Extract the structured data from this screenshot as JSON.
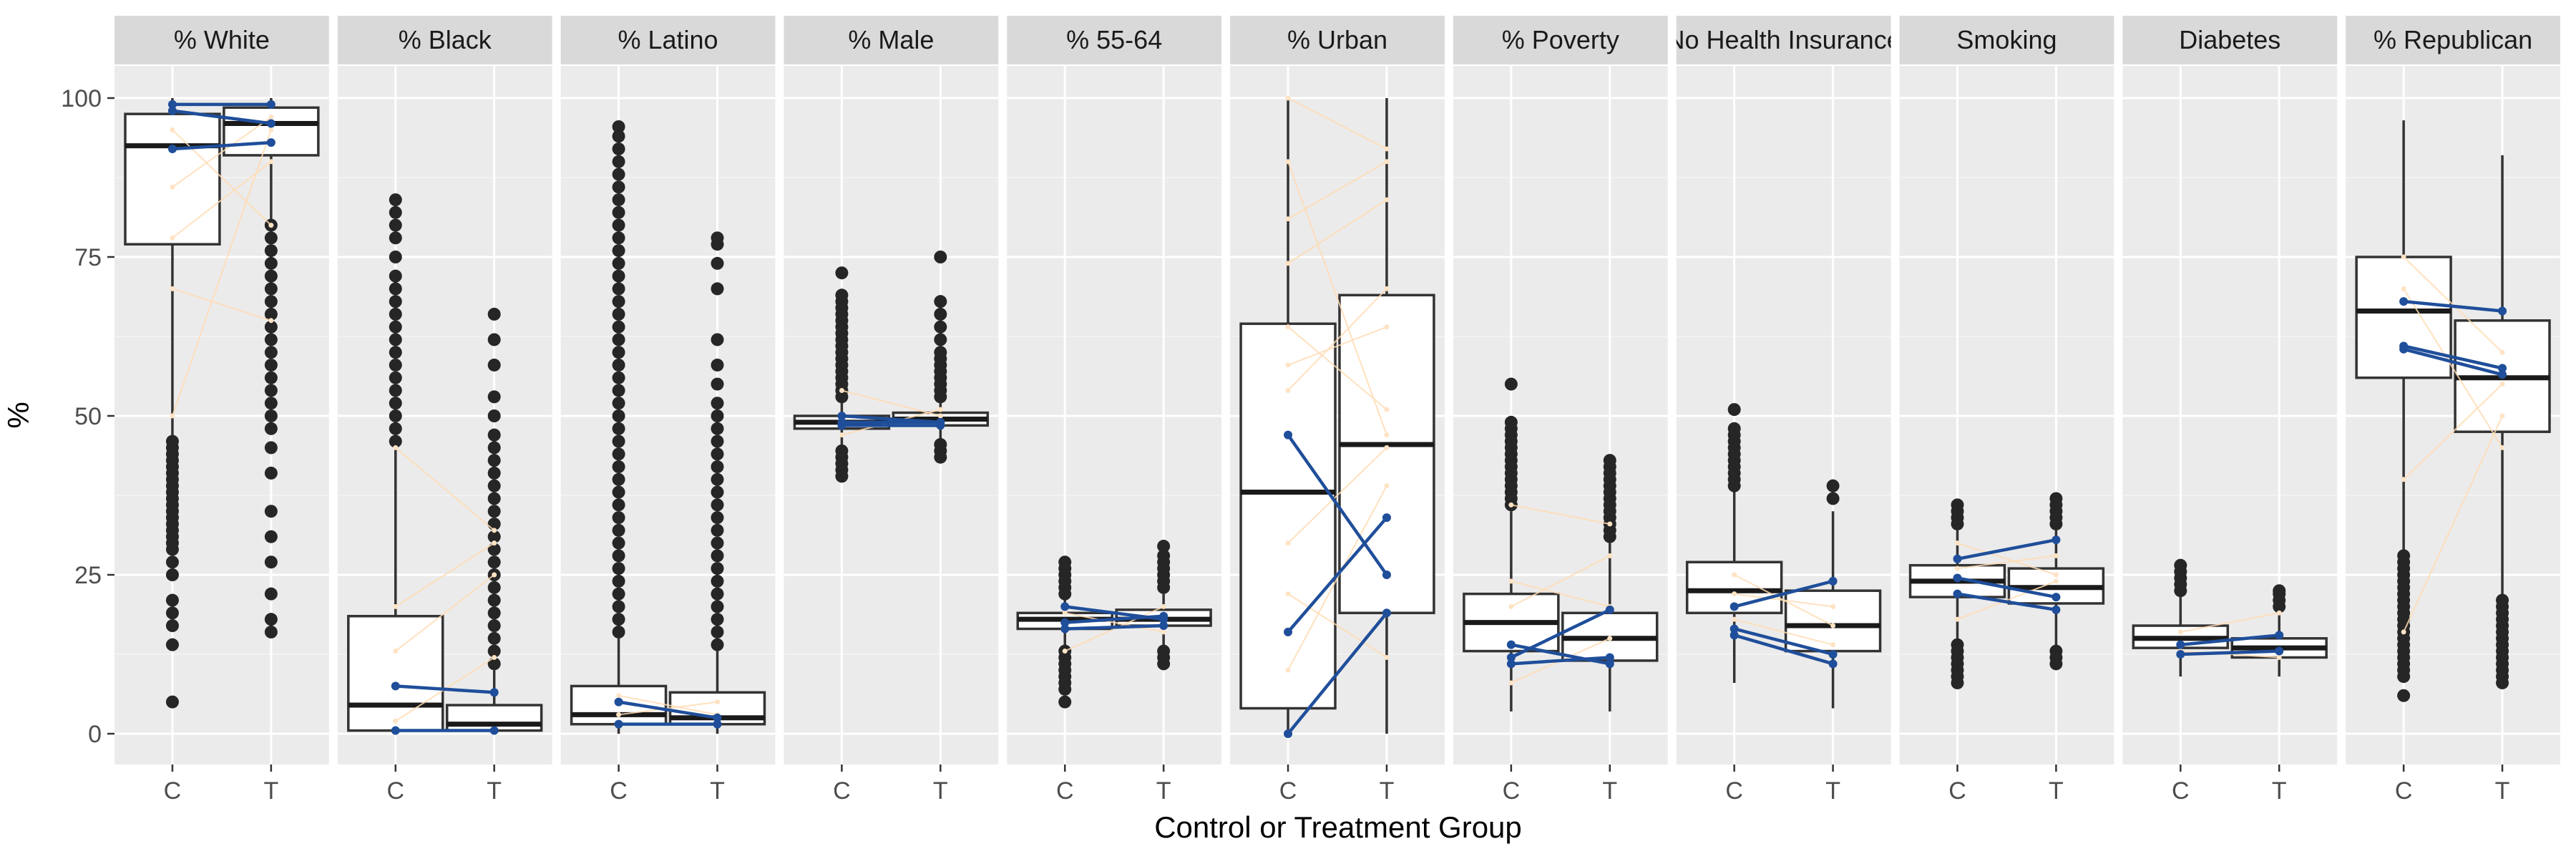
{
  "chart_data": {
    "type": "boxplot",
    "ylabel": "%",
    "xlabel": "Control or Treatment Group",
    "ylim": [
      0,
      100
    ],
    "y_ticks": [
      0,
      25,
      50,
      75,
      100
    ],
    "x_categories": [
      "C",
      "T"
    ],
    "grid": true,
    "colors": {
      "paired_highlight": "#1f4e9a",
      "paired_light": "#ffdcb4"
    },
    "facets": [
      {
        "label": "% White",
        "boxes": [
          {
            "group": "C",
            "lower": 77,
            "q1": 77,
            "median": 92.5,
            "q3": 97.5,
            "upper": 100,
            "whisker_low": 47,
            "whisker_high": 100,
            "outliers": [
              5,
              14,
              17,
              19,
              21,
              25,
              27,
              29,
              30,
              31,
              32,
              33,
              34,
              35,
              36,
              37,
              38,
              39,
              40,
              41,
              42,
              43,
              44,
              45,
              46
            ]
          },
          {
            "group": "T",
            "q1": 91,
            "median": 96,
            "q3": 98.5,
            "whisker_low": 80,
            "whisker_high": 100,
            "outliers": [
              16,
              18,
              22,
              27,
              31,
              35,
              41,
              45,
              48,
              50,
              52,
              54,
              56,
              58,
              60,
              62,
              64,
              66,
              68,
              70,
              72,
              74,
              76,
              78,
              80
            ]
          }
        ],
        "highlight_pairs": [
          [
            99,
            99
          ],
          [
            98,
            96
          ],
          [
            92,
            93
          ]
        ],
        "light_pairs": [
          [
            50,
            95
          ],
          [
            70,
            65
          ],
          [
            86,
            97
          ],
          [
            78,
            90
          ],
          [
            95,
            80
          ]
        ]
      },
      {
        "label": "% Black",
        "boxes": [
          {
            "group": "C",
            "q1": 0.5,
            "median": 4.5,
            "q3": 18.5,
            "whisker_low": 0,
            "whisker_high": 45,
            "outliers": [
              46,
              48,
              50,
              52,
              54,
              56,
              58,
              60,
              62,
              64,
              66,
              68,
              70,
              72,
              75,
              78,
              80,
              82,
              84
            ]
          },
          {
            "group": "T",
            "q1": 0.5,
            "median": 1.5,
            "q3": 4.5,
            "whisker_low": 0,
            "whisker_high": 10,
            "outliers": [
              11,
              13,
              15,
              17,
              19,
              21,
              23,
              25,
              27,
              29,
              31,
              33,
              35,
              37,
              39,
              41,
              43,
              45,
              47,
              50,
              53,
              58,
              62,
              66
            ]
          }
        ],
        "highlight_pairs": [
          [
            7.5,
            6.5
          ],
          [
            0.5,
            0.5
          ]
        ],
        "light_pairs": [
          [
            13,
            25
          ],
          [
            45,
            32
          ],
          [
            20,
            30
          ],
          [
            2,
            12
          ]
        ]
      },
      {
        "label": "% Latino",
        "boxes": [
          {
            "group": "C",
            "q1": 1.5,
            "median": 3,
            "q3": 7.5,
            "whisker_low": 0,
            "whisker_high": 15,
            "outliers": [
              16,
              18,
              20,
              22,
              24,
              26,
              28,
              30,
              32,
              34,
              36,
              38,
              40,
              42,
              44,
              46,
              48,
              50,
              52,
              54,
              56,
              58,
              60,
              62,
              64,
              66,
              68,
              70,
              72,
              74,
              76,
              78,
              80,
              82,
              84,
              86,
              88,
              90,
              92,
              94,
              95.5
            ]
          },
          {
            "group": "T",
            "q1": 1.5,
            "median": 2.5,
            "q3": 6.5,
            "whisker_low": 0,
            "whisker_high": 13,
            "outliers": [
              14,
              16,
              18,
              20,
              22,
              24,
              26,
              28,
              30,
              32,
              34,
              36,
              38,
              40,
              42,
              44,
              46,
              48,
              50,
              52,
              55,
              58,
              62,
              70,
              74,
              77,
              78
            ]
          }
        ],
        "highlight_pairs": [
          [
            5,
            2.5
          ],
          [
            1.5,
            1.5
          ]
        ],
        "light_pairs": [
          [
            3,
            5
          ],
          [
            6,
            3
          ]
        ]
      },
      {
        "label": "% Male",
        "boxes": [
          {
            "group": "C",
            "q1": 48,
            "median": 49,
            "q3": 50,
            "whisker_low": 45.5,
            "whisker_high": 52.5,
            "outliers": [
              40.5,
              41.5,
              42.5,
              43.5,
              44.5,
              53,
              54,
              55,
              56,
              57,
              58,
              59,
              60,
              61,
              62,
              63,
              64,
              65,
              66,
              67,
              68,
              69,
              72.5
            ]
          },
          {
            "group": "T",
            "q1": 48.5,
            "median": 49.5,
            "q3": 50.5,
            "whisker_low": 46,
            "whisker_high": 52.5,
            "outliers": [
              43.5,
              44.5,
              45.5,
              53,
              54,
              55,
              56,
              57,
              58,
              59,
              60,
              62,
              64,
              66,
              68,
              75
            ]
          }
        ],
        "highlight_pairs": [
          [
            49,
            49
          ],
          [
            48.5,
            48.5
          ],
          [
            50,
            49
          ]
        ],
        "light_pairs": [
          [
            54,
            50
          ],
          [
            47,
            51
          ]
        ]
      },
      {
        "label": "% 55-64",
        "boxes": [
          {
            "group": "C",
            "q1": 16.5,
            "median": 18,
            "q3": 19,
            "whisker_low": 13.5,
            "whisker_high": 21,
            "outliers": [
              5,
              7,
              8,
              9,
              10,
              11,
              12,
              13,
              22,
              23,
              24,
              25,
              26,
              27
            ]
          },
          {
            "group": "T",
            "q1": 17,
            "median": 18,
            "q3": 19.5,
            "whisker_low": 14,
            "whisker_high": 22,
            "outliers": [
              11,
              12,
              13,
              23,
              24,
              25,
              26,
              27,
              28,
              29.5
            ]
          }
        ],
        "highlight_pairs": [
          [
            20,
            18
          ],
          [
            17.5,
            18.5
          ],
          [
            16.5,
            17
          ]
        ],
        "light_pairs": [
          [
            13,
            20
          ],
          [
            19,
            16
          ]
        ]
      },
      {
        "label": "% Urban",
        "boxes": [
          {
            "group": "C",
            "q1": 4,
            "median": 38,
            "q3": 64.5,
            "whisker_low": 0,
            "whisker_high": 100,
            "outliers": []
          },
          {
            "group": "T",
            "q1": 19,
            "median": 45.5,
            "q3": 69,
            "whisker_low": 0,
            "whisker_high": 100,
            "outliers": []
          }
        ],
        "highlight_pairs": [
          [
            47,
            25
          ],
          [
            16,
            34
          ],
          [
            0,
            19
          ]
        ],
        "light_pairs": [
          [
            100,
            92
          ],
          [
            58,
            64
          ],
          [
            81,
            90
          ],
          [
            64,
            51
          ],
          [
            30,
            45
          ],
          [
            10,
            39
          ],
          [
            54,
            70
          ],
          [
            74,
            84
          ],
          [
            90,
            47
          ],
          [
            22,
            12
          ]
        ]
      },
      {
        "label": "% Poverty",
        "boxes": [
          {
            "group": "C",
            "q1": 13,
            "median": 17.5,
            "q3": 22,
            "whisker_low": 3.5,
            "whisker_high": 35,
            "outliers": [
              36,
              37,
              38,
              39,
              40,
              41,
              42,
              43,
              44,
              45,
              46,
              47,
              48,
              49,
              55
            ]
          },
          {
            "group": "T",
            "q1": 11.5,
            "median": 15,
            "q3": 19,
            "whisker_low": 3.5,
            "whisker_high": 30,
            "outliers": [
              31,
              32,
              33,
              34,
              35,
              36,
              37,
              38,
              39,
              40,
              41,
              42,
              43
            ]
          }
        ],
        "highlight_pairs": [
          [
            14,
            11
          ],
          [
            12,
            19.5
          ],
          [
            11,
            12
          ]
        ],
        "light_pairs": [
          [
            36,
            33
          ],
          [
            20,
            28
          ],
          [
            24,
            20
          ],
          [
            8,
            15
          ]
        ]
      },
      {
        "label": "No Health Insurance",
        "boxes": [
          {
            "group": "C",
            "q1": 19,
            "median": 22.5,
            "q3": 27,
            "whisker_low": 8,
            "whisker_high": 38,
            "outliers": [
              39,
              40,
              41,
              42,
              43,
              44,
              45,
              46,
              47,
              48,
              51
            ]
          },
          {
            "group": "T",
            "q1": 13,
            "median": 17,
            "q3": 22.5,
            "whisker_low": 4,
            "whisker_high": 35,
            "outliers": [
              37,
              39
            ]
          }
        ],
        "highlight_pairs": [
          [
            20,
            24
          ],
          [
            16.5,
            12.5
          ],
          [
            15.5,
            11
          ]
        ],
        "light_pairs": [
          [
            25,
            17
          ],
          [
            22,
            20
          ],
          [
            18,
            14
          ]
        ]
      },
      {
        "label": "Smoking",
        "boxes": [
          {
            "group": "C",
            "q1": 21.5,
            "median": 24,
            "q3": 26.5,
            "whisker_low": 15,
            "whisker_high": 32,
            "outliers": [
              8,
              9,
              10,
              11,
              12,
              13,
              14,
              33,
              34,
              35,
              36
            ]
          },
          {
            "group": "T",
            "q1": 20.5,
            "median": 23,
            "q3": 26,
            "whisker_low": 13.5,
            "whisker_high": 32,
            "outliers": [
              11,
              12,
              13,
              33,
              34,
              35,
              36,
              37
            ]
          }
        ],
        "highlight_pairs": [
          [
            27.5,
            30.5
          ],
          [
            24.5,
            21.5
          ],
          [
            22,
            19.5
          ]
        ],
        "light_pairs": [
          [
            30,
            25
          ],
          [
            18,
            24
          ],
          [
            26,
            28
          ]
        ]
      },
      {
        "label": "Diabetes",
        "boxes": [
          {
            "group": "C",
            "q1": 13.5,
            "median": 15,
            "q3": 17,
            "whisker_low": 9,
            "whisker_high": 21.5,
            "outliers": [
              22.5,
              23.5,
              24.5,
              25.5,
              26.5
            ]
          },
          {
            "group": "T",
            "q1": 12,
            "median": 13.5,
            "q3": 15,
            "whisker_low": 9,
            "whisker_high": 19,
            "outliers": [
              20,
              21,
              22,
              22.5
            ]
          }
        ],
        "highlight_pairs": [
          [
            14,
            15.5
          ],
          [
            12.5,
            13
          ]
        ],
        "light_pairs": [
          [
            16,
            19
          ],
          [
            13,
            12
          ]
        ]
      },
      {
        "label": "% Republican",
        "boxes": [
          {
            "group": "C",
            "q1": 56,
            "median": 66.5,
            "q3": 75,
            "whisker_low": 29,
            "whisker_high": 96.5,
            "outliers": [
              6,
              9,
              10,
              11,
              12,
              13,
              14,
              15,
              16,
              17,
              18,
              19,
              20,
              21,
              22,
              23,
              24,
              25,
              26,
              27,
              28
            ]
          },
          {
            "group": "T",
            "q1": 47.5,
            "median": 56,
            "q3": 65,
            "whisker_low": 22,
            "whisker_high": 91,
            "outliers": [
              8,
              9,
              10,
              11,
              12,
              13,
              14,
              15,
              16,
              17,
              18,
              19,
              20,
              21
            ]
          }
        ],
        "highlight_pairs": [
          [
            68,
            66.5
          ],
          [
            61,
            57.5
          ],
          [
            60.5,
            56.5
          ]
        ],
        "light_pairs": [
          [
            75,
            60
          ],
          [
            16,
            50
          ],
          [
            70,
            45
          ],
          [
            40,
            55
          ]
        ]
      }
    ]
  }
}
